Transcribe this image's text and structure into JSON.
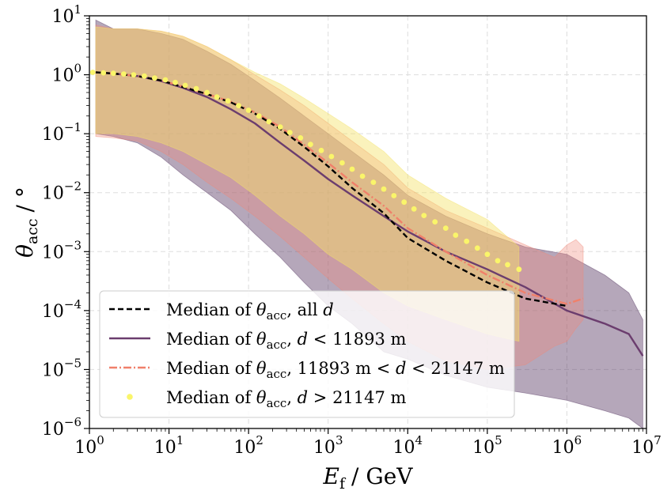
{
  "chart_data": {
    "type": "line",
    "x_scale": "log",
    "y_scale": "log",
    "xlim": [
      1,
      10000000
    ],
    "ylim": [
      1e-06,
      10
    ],
    "xlabel": {
      "symbol": "E",
      "subscript": "f",
      "unit": "/ GeV"
    },
    "ylabel": {
      "symbol": "θ",
      "subscript": "acc",
      "unit": "/ °"
    },
    "grid": true,
    "legend_position": "lower-left",
    "x_ticks": [
      {
        "base": "10",
        "exp": "0",
        "value": 1
      },
      {
        "base": "10",
        "exp": "1",
        "value": 10
      },
      {
        "base": "10",
        "exp": "2",
        "value": 100
      },
      {
        "base": "10",
        "exp": "3",
        "value": 1000
      },
      {
        "base": "10",
        "exp": "4",
        "value": 10000
      },
      {
        "base": "10",
        "exp": "5",
        "value": 100000
      },
      {
        "base": "10",
        "exp": "6",
        "value": 1000000
      },
      {
        "base": "10",
        "exp": "7",
        "value": 10000000
      }
    ],
    "y_ticks": [
      {
        "base": "10",
        "exp": "−6",
        "value": 1e-06
      },
      {
        "base": "10",
        "exp": "−5",
        "value": 1e-05
      },
      {
        "base": "10",
        "exp": "−4",
        "value": 0.0001
      },
      {
        "base": "10",
        "exp": "−3",
        "value": 0.001
      },
      {
        "base": "10",
        "exp": "−2",
        "value": 0.01
      },
      {
        "base": "10",
        "exp": "−1",
        "value": 0.1
      },
      {
        "base": "10",
        "exp": "0",
        "value": 1
      },
      {
        "base": "10",
        "exp": "1",
        "value": 10
      }
    ],
    "series": [
      {
        "name": "Median of θacc, all d",
        "style": "dashed",
        "color": "#000000",
        "x": [
          1.2,
          2,
          4,
          8,
          15,
          30,
          60,
          120,
          250,
          500,
          1000,
          2000,
          5000,
          10000,
          30000,
          100000,
          300000,
          1000000
        ],
        "y": [
          1.1,
          1.05,
          0.95,
          0.8,
          0.62,
          0.47,
          0.34,
          0.22,
          0.12,
          0.06,
          0.028,
          0.012,
          0.0045,
          0.0017,
          0.0007,
          0.0003,
          0.00016,
          0.00012
        ]
      },
      {
        "name": "Median of θacc, d < 11893 m",
        "style": "solid",
        "color": "#6b3d6e",
        "x": [
          1.2,
          2,
          4,
          8,
          15,
          30,
          60,
          120,
          250,
          500,
          1000,
          2000,
          5000,
          10000,
          30000,
          100000,
          300000,
          1000000,
          3000000,
          6000000,
          9000000
        ],
        "y": [
          1.1,
          1.05,
          0.95,
          0.78,
          0.6,
          0.42,
          0.26,
          0.15,
          0.07,
          0.035,
          0.017,
          0.009,
          0.004,
          0.0022,
          0.001,
          0.0005,
          0.00025,
          0.0001,
          6e-05,
          4e-05,
          1.7e-05
        ]
      },
      {
        "name": "Median of θacc, 11893 m < d < 21147 m",
        "style": "dashdot",
        "color": "#f0806a",
        "x": [
          1.2,
          2,
          4,
          8,
          15,
          30,
          60,
          120,
          250,
          500,
          1000,
          2000,
          5000,
          10000,
          30000,
          100000,
          300000,
          1000000,
          1600000
        ],
        "y": [
          1.1,
          1.05,
          0.95,
          0.8,
          0.63,
          0.47,
          0.35,
          0.23,
          0.13,
          0.065,
          0.032,
          0.015,
          0.006,
          0.0025,
          0.001,
          0.0004,
          0.0002,
          0.00013,
          0.00016
        ]
      },
      {
        "name": "Median of θacc, d > 21147 m",
        "style": "dots",
        "color": "#faf56a",
        "x": [
          1.1,
          1.5,
          2,
          2.7,
          3.6,
          4.9,
          6.6,
          9,
          12,
          16,
          22,
          30,
          40,
          55,
          75,
          100,
          135,
          180,
          250,
          330,
          450,
          600,
          820,
          1100,
          1500,
          2000,
          2700,
          3700,
          5000,
          6700,
          9000,
          12000,
          16000,
          22000,
          30000,
          40000,
          55000,
          75000,
          100000,
          135000,
          180000,
          250000
        ],
        "y": [
          1.1,
          1.08,
          1.06,
          1.03,
          1.0,
          0.95,
          0.88,
          0.82,
          0.74,
          0.66,
          0.58,
          0.5,
          0.42,
          0.36,
          0.3,
          0.25,
          0.2,
          0.16,
          0.13,
          0.105,
          0.085,
          0.066,
          0.052,
          0.041,
          0.032,
          0.025,
          0.019,
          0.015,
          0.0115,
          0.0089,
          0.0069,
          0.0053,
          0.0041,
          0.0032,
          0.0025,
          0.0019,
          0.0015,
          0.00115,
          0.0009,
          0.0007,
          0.0006,
          0.0005
        ]
      }
    ],
    "bands": [
      {
        "name": "Band d < 11893 m",
        "color": "#5a3b66",
        "opacity": 0.45,
        "x": [
          1.2,
          2,
          4,
          8,
          15,
          30,
          60,
          120,
          250,
          500,
          1000,
          2000,
          5000,
          10000,
          30000,
          100000,
          300000,
          1000000,
          3000000,
          6000000,
          9000000
        ],
        "upper": [
          8.5,
          6,
          6,
          5,
          4,
          2.5,
          1.5,
          0.8,
          0.4,
          0.2,
          0.1,
          0.05,
          0.02,
          0.009,
          0.004,
          0.002,
          0.0012,
          0.0009,
          0.0004,
          0.0002,
          7e-05
        ],
        "lower": [
          0.1,
          0.09,
          0.07,
          0.04,
          0.02,
          0.01,
          0.005,
          0.002,
          0.0008,
          0.0003,
          0.00012,
          6e-05,
          2e-05,
          1.5e-05,
          8e-06,
          5e-06,
          4e-06,
          3e-06,
          2e-06,
          1.5e-06,
          1e-06
        ]
      },
      {
        "name": "Band 11893 m < d < 21147 m",
        "color": "#f08a7a",
        "opacity": 0.35,
        "x": [
          1.2,
          2,
          4,
          8,
          15,
          30,
          60,
          120,
          250,
          500,
          1000,
          2000,
          5000,
          10000,
          30000,
          100000,
          300000,
          700000,
          1000000,
          1300000,
          1600000
        ],
        "upper": [
          7,
          6,
          6,
          5.5,
          4.5,
          3,
          1.8,
          1,
          0.55,
          0.3,
          0.15,
          0.075,
          0.03,
          0.012,
          0.005,
          0.0025,
          0.0013,
          0.0008,
          0.0013,
          0.0016,
          0.0012
        ],
        "lower": [
          0.09,
          0.085,
          0.075,
          0.05,
          0.03,
          0.015,
          0.008,
          0.004,
          0.0018,
          0.0008,
          0.00035,
          0.00016,
          6e-05,
          3e-05,
          1.4e-05,
          1e-05,
          1.2e-05,
          2.5e-05,
          3e-05,
          5e-05,
          7e-05
        ]
      },
      {
        "name": "Band d > 21147 m",
        "color": "#f3e36a",
        "opacity": 0.45,
        "x": [
          1.2,
          2,
          4,
          8,
          15,
          30,
          60,
          120,
          250,
          500,
          1000,
          2000,
          5000,
          10000,
          30000,
          100000,
          250000
        ],
        "upper": [
          6.5,
          6,
          6,
          5.5,
          4.5,
          3,
          1.8,
          1.1,
          0.7,
          0.4,
          0.22,
          0.12,
          0.05,
          0.02,
          0.008,
          0.0035,
          0.0012
        ],
        "lower": [
          0.1,
          0.1,
          0.09,
          0.07,
          0.05,
          0.03,
          0.018,
          0.009,
          0.004,
          0.002,
          0.0009,
          0.0005,
          0.0002,
          0.00012,
          7e-05,
          4e-05,
          3e-05
        ]
      }
    ],
    "legend": [
      {
        "prefix": "Median of ",
        "sym": "θ",
        "sub": "acc",
        "suffix": ", all ",
        "var": "d",
        "tail": ""
      },
      {
        "prefix": "Median of ",
        "sym": "θ",
        "sub": "acc",
        "suffix": ", ",
        "var": "d",
        "tail": " < 11893 m"
      },
      {
        "prefix": "Median of ",
        "sym": "θ",
        "sub": "acc",
        "suffix": ", 11893 m < ",
        "var": "d",
        "tail": " < 21147 m"
      },
      {
        "prefix": "Median of ",
        "sym": "θ",
        "sub": "acc",
        "suffix": ", ",
        "var": "d",
        "tail": " > 21147 m"
      }
    ]
  }
}
